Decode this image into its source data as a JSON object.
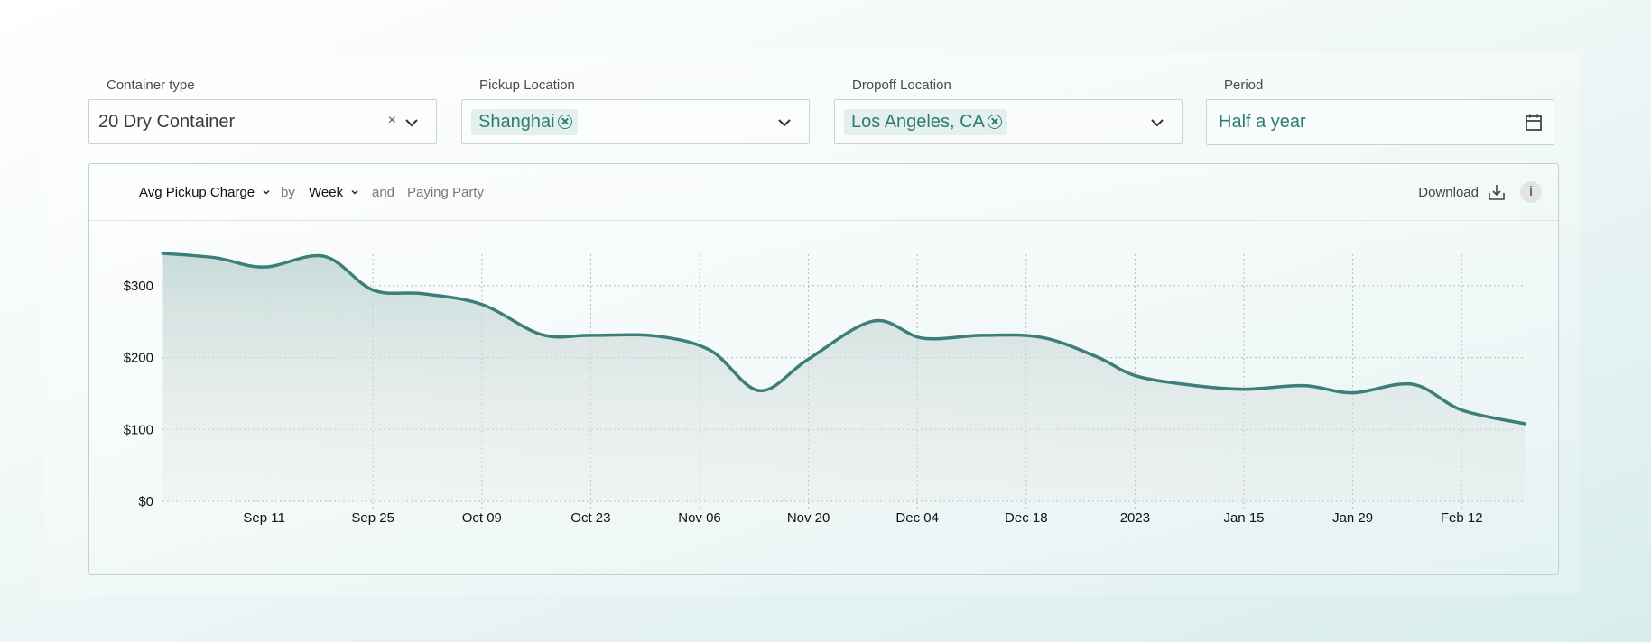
{
  "filters": {
    "container_type": {
      "label": "Container type",
      "value": "20 Dry Container"
    },
    "pickup": {
      "label": "Pickup Location",
      "chip": "Shanghai"
    },
    "dropoff": {
      "label": "Dropoff Location",
      "chip": "Los Angeles, CA"
    },
    "period": {
      "label": "Period",
      "value": "Half a year"
    }
  },
  "card": {
    "metric": "Avg Pickup Charge",
    "by": "by",
    "granularity": "Week",
    "and": "and",
    "party": "Paying Party",
    "download": "Download",
    "info": "i"
  },
  "colors": {
    "accent": "#3b7f78",
    "text_accent": "#2f7d72"
  },
  "chart_data": {
    "type": "area",
    "xlabel": "",
    "ylabel": "",
    "ylim": [
      0,
      345
    ],
    "yticks": [
      {
        "label": "$0",
        "value": 0
      },
      {
        "label": "$100",
        "value": 100
      },
      {
        "label": "$200",
        "value": 200
      },
      {
        "label": "$300",
        "value": 300
      }
    ],
    "xticks": [
      {
        "label": "Sep 11",
        "t": 1
      },
      {
        "label": "Sep 25",
        "t": 2
      },
      {
        "label": "Oct 09",
        "t": 3
      },
      {
        "label": "Oct 23",
        "t": 4
      },
      {
        "label": "Nov 06",
        "t": 5
      },
      {
        "label": "Nov 20",
        "t": 6
      },
      {
        "label": "Dec 04",
        "t": 7
      },
      {
        "label": "Dec 18",
        "t": 8
      },
      {
        "label": "2023",
        "t": 9
      },
      {
        "label": "Jan 15",
        "t": 10
      },
      {
        "label": "Jan 29",
        "t": 11
      },
      {
        "label": "Feb 12",
        "t": 12
      }
    ],
    "x_range": [
      0.07,
      12.58
    ],
    "series": [
      {
        "points": [
          [
            0.07,
            345
          ],
          [
            0.55,
            339
          ],
          [
            1.0,
            326
          ],
          [
            1.55,
            341
          ],
          [
            2.0,
            294
          ],
          [
            2.45,
            289
          ],
          [
            3.0,
            274
          ],
          [
            3.55,
            232
          ],
          [
            4.0,
            231
          ],
          [
            4.6,
            230
          ],
          [
            5.1,
            210
          ],
          [
            5.55,
            154
          ],
          [
            6.0,
            198
          ],
          [
            6.6,
            251
          ],
          [
            7.05,
            227
          ],
          [
            7.6,
            231
          ],
          [
            8.15,
            228
          ],
          [
            8.65,
            201
          ],
          [
            9.0,
            175
          ],
          [
            9.5,
            162
          ],
          [
            10.0,
            156
          ],
          [
            10.55,
            161
          ],
          [
            11.0,
            151
          ],
          [
            11.55,
            163
          ],
          [
            12.0,
            127
          ],
          [
            12.58,
            108
          ]
        ]
      }
    ]
  }
}
